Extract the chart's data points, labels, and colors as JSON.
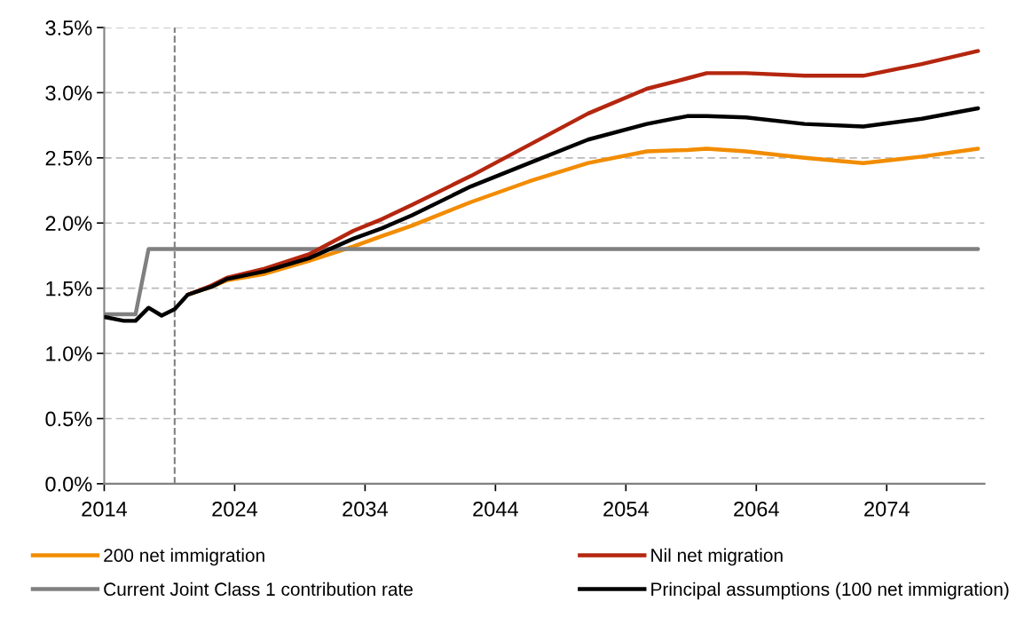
{
  "chart_data": {
    "type": "line",
    "series": [
      {
        "name": "200 net immigration",
        "color": "#f28c00",
        "x": [
          2020.4,
          2022.2,
          2023.4,
          2026.3,
          2029.7,
          2033.1,
          2035.3,
          2037.6,
          2042.1,
          2046.6,
          2051.1,
          2055.6,
          2058.7,
          2060.2,
          2063.2,
          2067.7,
          2072.2,
          2076.7,
          2081
        ],
        "values": [
          1.45,
          1.51,
          1.56,
          1.61,
          1.71,
          1.82,
          1.9,
          1.98,
          2.16,
          2.32,
          2.46,
          2.55,
          2.56,
          2.57,
          2.55,
          2.5,
          2.46,
          2.51,
          2.57
        ]
      },
      {
        "name": "Current Joint Class 1 contribution rate",
        "color": "#808080",
        "x": [
          2014,
          2016.4,
          2017.4,
          2081
        ],
        "values": [
          1.3,
          1.3,
          1.8,
          1.8
        ]
      },
      {
        "name": "Nil net migration",
        "color": "#b5260f",
        "x": [
          2020.4,
          2022.2,
          2023.4,
          2026.3,
          2029.7,
          2033.1,
          2035.3,
          2037.6,
          2042.1,
          2046.6,
          2051.1,
          2055.6,
          2058.7,
          2060.2,
          2063.2,
          2067.7,
          2072.2,
          2076.7,
          2081
        ],
        "values": [
          1.45,
          1.52,
          1.58,
          1.65,
          1.76,
          1.94,
          2.03,
          2.14,
          2.36,
          2.6,
          2.84,
          3.03,
          3.11,
          3.15,
          3.15,
          3.13,
          3.13,
          3.22,
          3.32
        ]
      },
      {
        "name": "Principal assumptions (100 net immigration)",
        "color": "#000000",
        "x": [
          2014,
          2015.5,
          2016.4,
          2017.4,
          2018.4,
          2019.4,
          2020.4,
          2022.2,
          2023.4,
          2026.3,
          2029.7,
          2033.1,
          2035.3,
          2037.6,
          2042.1,
          2046.6,
          2051.1,
          2055.6,
          2058.7,
          2060.2,
          2063.2,
          2067.7,
          2072.2,
          2076.7,
          2081
        ],
        "values": [
          1.28,
          1.25,
          1.25,
          1.35,
          1.29,
          1.34,
          1.45,
          1.51,
          1.57,
          1.63,
          1.73,
          1.88,
          1.96,
          2.06,
          2.28,
          2.46,
          2.64,
          2.76,
          2.82,
          2.82,
          2.81,
          2.76,
          2.74,
          2.8,
          2.88
        ]
      }
    ],
    "xlim": [
      2014,
      2081.5
    ],
    "xticks": [
      2014,
      2024,
      2034,
      2044,
      2054,
      2064,
      2074
    ],
    "ylim": [
      0,
      3.5
    ],
    "yticks": [
      {
        "value": 0,
        "label": "0.0%"
      },
      {
        "value": 0.5,
        "label": "0.5%"
      },
      {
        "value": 1.0,
        "label": "1.0%"
      },
      {
        "value": 1.5,
        "label": "1.5%"
      },
      {
        "value": 2.0,
        "label": "2.0%"
      },
      {
        "value": 2.5,
        "label": "2.5%"
      },
      {
        "value": 3.0,
        "label": "3.0%"
      },
      {
        "value": 3.5,
        "label": "3.5%"
      }
    ],
    "ref_lines": [
      {
        "axis": "x",
        "value": 2019.4,
        "color": "#808080",
        "line_style": "dashed"
      }
    ],
    "grid": "y",
    "legend": "bottom",
    "marker": "none",
    "line_style": "solid"
  }
}
